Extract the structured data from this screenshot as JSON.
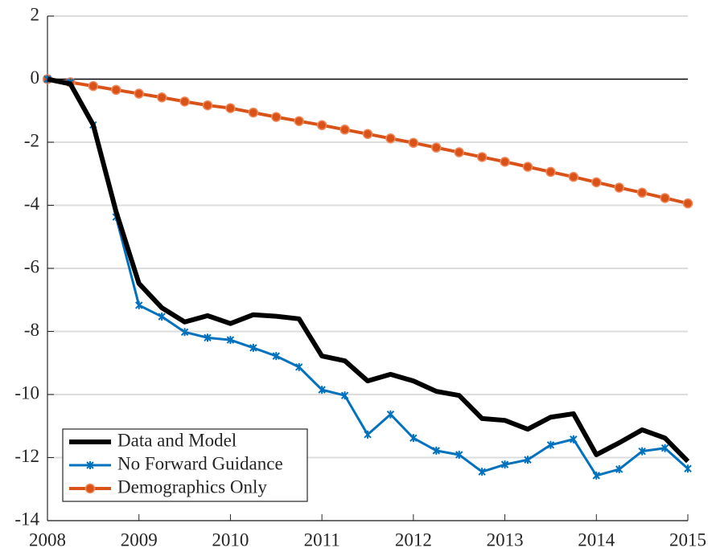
{
  "chart_data": {
    "type": "line",
    "x": [
      2008,
      2008.25,
      2008.5,
      2008.75,
      2009,
      2009.25,
      2009.5,
      2009.75,
      2010,
      2010.25,
      2010.5,
      2010.75,
      2011,
      2011.25,
      2011.5,
      2011.75,
      2012,
      2012.25,
      2012.5,
      2012.75,
      2013,
      2013.25,
      2013.5,
      2013.75,
      2014,
      2014.25,
      2014.5,
      2014.75,
      2015
    ],
    "series": [
      {
        "name": "Data and Model",
        "color": "#000000",
        "marker": "none",
        "values": [
          0,
          -0.15,
          -1.45,
          -4.2,
          -6.48,
          -7.25,
          -7.7,
          -7.5,
          -7.75,
          -7.47,
          -7.52,
          -7.6,
          -8.78,
          -8.93,
          -9.57,
          -9.36,
          -9.57,
          -9.9,
          -10.03,
          -10.76,
          -10.82,
          -11.1,
          -10.72,
          -10.61,
          -11.91,
          -11.53,
          -11.12,
          -11.38,
          -12.12
        ]
      },
      {
        "name": "No Forward Guidance",
        "color": "#0072bd",
        "marker": "star",
        "values": [
          0,
          -0.1,
          -1.45,
          -4.37,
          -7.17,
          -7.53,
          -8.02,
          -8.2,
          -8.27,
          -8.52,
          -8.78,
          -9.13,
          -9.85,
          -10.03,
          -11.27,
          -10.63,
          -11.38,
          -11.78,
          -11.91,
          -12.45,
          -12.22,
          -12.07,
          -11.6,
          -11.42,
          -12.57,
          -12.37,
          -11.8,
          -11.7,
          -12.35
        ]
      },
      {
        "name": "Demographics Only",
        "color": "#d95319",
        "marker": "circle",
        "values": [
          0,
          -0.1,
          -0.22,
          -0.34,
          -0.46,
          -0.58,
          -0.71,
          -0.83,
          -0.92,
          -1.06,
          -1.2,
          -1.33,
          -1.46,
          -1.6,
          -1.74,
          -1.88,
          -2.02,
          -2.17,
          -2.32,
          -2.47,
          -2.62,
          -2.78,
          -2.94,
          -3.1,
          -3.27,
          -3.44,
          -3.6,
          -3.77,
          -3.94
        ]
      }
    ],
    "xlim": [
      2008,
      2015
    ],
    "xticks": [
      2008,
      2009,
      2010,
      2011,
      2012,
      2013,
      2014,
      2015
    ],
    "ylim": [
      -14,
      2
    ],
    "yticks": [
      -14,
      -12,
      -10,
      -8,
      -6,
      -4,
      -2,
      0,
      2
    ],
    "grid": true,
    "legend": "lower left"
  }
}
